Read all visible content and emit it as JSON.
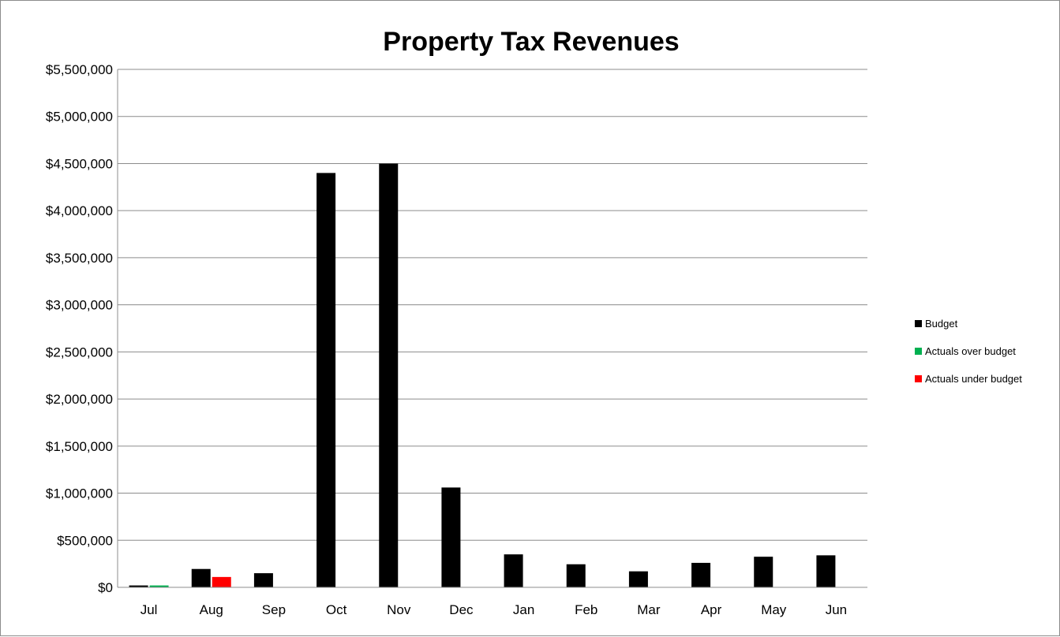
{
  "chart_data": {
    "type": "bar",
    "title": "Property Tax Revenues",
    "xlabel": "",
    "ylabel": "",
    "categories": [
      "Jul",
      "Aug",
      "Sep",
      "Oct",
      "Nov",
      "Dec",
      "Jan",
      "Feb",
      "Mar",
      "Apr",
      "May",
      "Jun"
    ],
    "series": [
      {
        "name": "Budget",
        "color": "#000000",
        "values": [
          20000,
          195000,
          150000,
          4400000,
          4500000,
          1060000,
          350000,
          245000,
          170000,
          260000,
          325000,
          340000
        ]
      },
      {
        "name": "Actuals over budget",
        "color": "#00B050",
        "values": [
          20000,
          null,
          null,
          null,
          null,
          null,
          null,
          null,
          null,
          null,
          null,
          null
        ]
      },
      {
        "name": "Actuals under budget",
        "color": "#FF0000",
        "values": [
          null,
          110000,
          null,
          null,
          null,
          null,
          null,
          null,
          null,
          null,
          null,
          null
        ]
      }
    ],
    "ylim": [
      0,
      5500000
    ],
    "ytick_labels": [
      "$0",
      "$500,000",
      "$1,000,000",
      "$1,500,000",
      "$2,000,000",
      "$2,500,000",
      "$3,000,000",
      "$3,500,000",
      "$4,000,000",
      "$4,500,000",
      "$5,000,000",
      "$5,500,000"
    ],
    "grid": true,
    "legend_position": "right"
  }
}
